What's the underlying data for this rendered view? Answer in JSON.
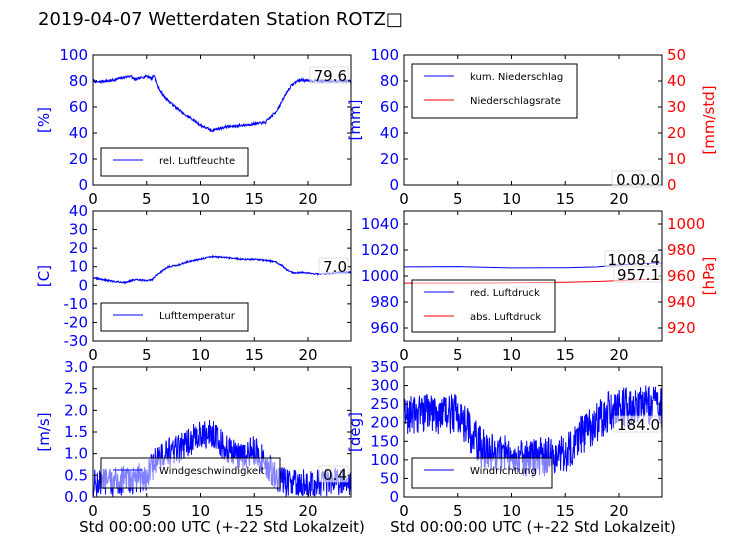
{
  "page": {
    "title": "2019-04-07 Wetterdaten Station ROTZ□"
  },
  "colors": {
    "blue": "#0000ff",
    "red": "#ff0000",
    "black": "#000000"
  },
  "chart_data": [
    {
      "id": "humidity",
      "type": "line",
      "ylabel": "[%]",
      "xlabel": "",
      "xlim": [
        0,
        24
      ],
      "ylim": [
        0,
        100
      ],
      "yticks": [
        0,
        20,
        40,
        60,
        80,
        100
      ],
      "xticks": [
        0,
        5,
        10,
        15,
        20
      ],
      "legend": [
        "rel. Luftfeuchte"
      ],
      "annotation": "79.6",
      "series": [
        {
          "name": "rel. Luftfeuchte",
          "axis": "left",
          "color": "#0000ff",
          "noise": 1.0,
          "points": [
            [
              0,
              80
            ],
            [
              0.5,
              79
            ],
            [
              1,
              80
            ],
            [
              1.5,
              80
            ],
            [
              2,
              81
            ],
            [
              2.5,
              82
            ],
            [
              3,
              83
            ],
            [
              3.5,
              84
            ],
            [
              3.9,
              81
            ],
            [
              4.3,
              82
            ],
            [
              5,
              84
            ],
            [
              5.5,
              82
            ],
            [
              5.7,
              85
            ],
            [
              6,
              76
            ],
            [
              6.5,
              69
            ],
            [
              7,
              65
            ],
            [
              7.5,
              61
            ],
            [
              8,
              58
            ],
            [
              8.5,
              54
            ],
            [
              9,
              52
            ],
            [
              9.5,
              49
            ],
            [
              10,
              46
            ],
            [
              10.5,
              44
            ],
            [
              11,
              42
            ],
            [
              11.5,
              43
            ],
            [
              12,
              44
            ],
            [
              12.5,
              45
            ],
            [
              13,
              45
            ],
            [
              14,
              46
            ],
            [
              15,
              47
            ],
            [
              16,
              48
            ],
            [
              16.5,
              52
            ],
            [
              17,
              56
            ],
            [
              17.5,
              63
            ],
            [
              18,
              71
            ],
            [
              18.5,
              77
            ],
            [
              19,
              80
            ],
            [
              19.5,
              81
            ],
            [
              20,
              80
            ],
            [
              21,
              80
            ],
            [
              22,
              80
            ],
            [
              23,
              80
            ],
            [
              24,
              80
            ]
          ]
        }
      ]
    },
    {
      "id": "precipitation",
      "type": "line",
      "ylabel": "[mm]",
      "ylabel_right": "[mm/std]",
      "xlim": [
        0,
        24
      ],
      "ylim": [
        0,
        100
      ],
      "yticks": [
        0,
        20,
        40,
        60,
        80,
        100
      ],
      "ylim_right": [
        0,
        50
      ],
      "yticks_right": [
        0,
        10,
        20,
        30,
        40,
        50
      ],
      "xticks": [
        0,
        5,
        10,
        15,
        20
      ],
      "legend": [
        "kum. Niederschlag",
        "Niederschlagsrate"
      ],
      "annotation": "0.0",
      "annotation2": "0.0",
      "series": [
        {
          "name": "kum. Niederschlag",
          "axis": "left",
          "color": "#0000ff",
          "noise": 0,
          "points": [
            [
              0,
              0
            ],
            [
              24,
              0
            ]
          ]
        },
        {
          "name": "Niederschlagsrate",
          "axis": "right",
          "color": "#ff0000",
          "noise": 0,
          "points": [
            [
              0,
              0
            ],
            [
              24,
              0
            ]
          ]
        }
      ]
    },
    {
      "id": "temperature",
      "type": "line",
      "ylabel": "[C]",
      "xlim": [
        0,
        24
      ],
      "ylim": [
        -30,
        40
      ],
      "yticks": [
        -30,
        -20,
        -10,
        0,
        10,
        20,
        30,
        40
      ],
      "xticks": [
        0,
        5,
        10,
        15,
        20
      ],
      "legend": [
        "Lufttemperatur"
      ],
      "annotation": "7.0",
      "series": [
        {
          "name": "Lufttemperatur",
          "axis": "left",
          "color": "#0000ff",
          "noise": 0.4,
          "points": [
            [
              0,
              4
            ],
            [
              1,
              3
            ],
            [
              2,
              2
            ],
            [
              3,
              1.5
            ],
            [
              3.5,
              2.5
            ],
            [
              4,
              3
            ],
            [
              5,
              2.5
            ],
            [
              5.5,
              3
            ],
            [
              6,
              6
            ],
            [
              6.5,
              8
            ],
            [
              7,
              10
            ],
            [
              8,
              11
            ],
            [
              9,
              13
            ],
            [
              10,
              14
            ],
            [
              11,
              15.5
            ],
            [
              12,
              15
            ],
            [
              13,
              14.5
            ],
            [
              14,
              14
            ],
            [
              15,
              14
            ],
            [
              16,
              13.5
            ],
            [
              17,
              12.5
            ],
            [
              17.5,
              11
            ],
            [
              18,
              8.5
            ],
            [
              18.5,
              7
            ],
            [
              19,
              6.5
            ],
            [
              19.5,
              7
            ],
            [
              20,
              6.5
            ],
            [
              21,
              6
            ],
            [
              22,
              6.5
            ],
            [
              23,
              7
            ],
            [
              24,
              7
            ]
          ]
        }
      ]
    },
    {
      "id": "pressure",
      "type": "line",
      "ylabel": "",
      "ylabel_right": "[hPa]",
      "xlim": [
        0,
        24
      ],
      "ylim": [
        950,
        1050
      ],
      "yticks": [
        960,
        980,
        1000,
        1020,
        1040
      ],
      "ylim_right": [
        910,
        1010
      ],
      "yticks_right": [
        920,
        940,
        960,
        980,
        1000
      ],
      "xticks": [
        0,
        5,
        10,
        15,
        20
      ],
      "legend": [
        "red. Luftdruck",
        "abs. Luftdruck"
      ],
      "annotation": "1008.4",
      "annotation2": "957.1",
      "series": [
        {
          "name": "red. Luftdruck",
          "axis": "left",
          "color": "#0000ff",
          "noise": 0,
          "points": [
            [
              0,
              1007
            ],
            [
              5,
              1007.2
            ],
            [
              10,
              1006.2
            ],
            [
              15,
              1006.4
            ],
            [
              18,
              1007
            ],
            [
              20,
              1008.5
            ],
            [
              22,
              1009.5
            ],
            [
              24,
              1010
            ]
          ]
        },
        {
          "name": "abs. Luftdruck",
          "axis": "right",
          "color": "#ff0000",
          "noise": 0,
          "points": [
            [
              0,
              954.5
            ],
            [
              5,
              954.5
            ],
            [
              10,
              954.8
            ],
            [
              15,
              955.2
            ],
            [
              18,
              955.8
            ],
            [
              20,
              956.5
            ],
            [
              22,
              957.2
            ],
            [
              24,
              957.6
            ]
          ]
        }
      ]
    },
    {
      "id": "wind-speed",
      "type": "line",
      "ylabel": "[m/s]",
      "xlabel": "Std 00:00:00 UTC (+-22 Std Lokalzeit)",
      "xlim": [
        0,
        24
      ],
      "ylim": [
        0,
        3.0
      ],
      "yticks": [
        0.0,
        0.5,
        1.0,
        1.5,
        2.0,
        2.5,
        3.0
      ],
      "yticks_format": 1,
      "xticks": [
        0,
        5,
        10,
        15,
        20
      ],
      "legend": [
        "Windgeschwindigkeit"
      ],
      "annotation": "0.4",
      "series": [
        {
          "name": "Windgeschwindigkeit",
          "axis": "left",
          "color": "#0000ff",
          "noise": 0.35,
          "points": [
            [
              0,
              0.3
            ],
            [
              2,
              0.35
            ],
            [
              4,
              0.4
            ],
            [
              5,
              0.5
            ],
            [
              5.5,
              0.7
            ],
            [
              6,
              0.9
            ],
            [
              7,
              1.0
            ],
            [
              8,
              1.1
            ],
            [
              9,
              1.3
            ],
            [
              10,
              1.4
            ],
            [
              11,
              1.5
            ],
            [
              12,
              1.2
            ],
            [
              13,
              1.0
            ],
            [
              14,
              0.9
            ],
            [
              15,
              1.1
            ],
            [
              16,
              0.8
            ],
            [
              17,
              0.5
            ],
            [
              18,
              0.3
            ],
            [
              20,
              0.3
            ],
            [
              22,
              0.3
            ],
            [
              24,
              0.35
            ]
          ]
        }
      ]
    },
    {
      "id": "wind-direction",
      "type": "line",
      "ylabel": "[deg]",
      "xlabel": "Std 00:00:00 UTC (+-22 Std Lokalzeit)",
      "xlim": [
        0,
        24
      ],
      "ylim": [
        0,
        350
      ],
      "yticks": [
        0,
        50,
        100,
        150,
        200,
        250,
        300,
        350
      ],
      "xticks": [
        0,
        5,
        10,
        15,
        20
      ],
      "legend": [
        "Windrichtung"
      ],
      "annotation": "184.0",
      "series": [
        {
          "name": "Windrichtung",
          "axis": "left",
          "color": "#0000ff",
          "noise": 55,
          "points": [
            [
              0,
              220
            ],
            [
              2,
              230
            ],
            [
              4,
              220
            ],
            [
              5,
              230
            ],
            [
              6,
              180
            ],
            [
              7,
              140
            ],
            [
              8,
              120
            ],
            [
              10,
              110
            ],
            [
              12,
              105
            ],
            [
              14,
              110
            ],
            [
              15,
              120
            ],
            [
              16,
              150
            ],
            [
              17,
              180
            ],
            [
              18,
              200
            ],
            [
              19,
              230
            ],
            [
              20,
              240
            ],
            [
              22,
              250
            ],
            [
              24,
              240
            ]
          ]
        }
      ]
    }
  ]
}
